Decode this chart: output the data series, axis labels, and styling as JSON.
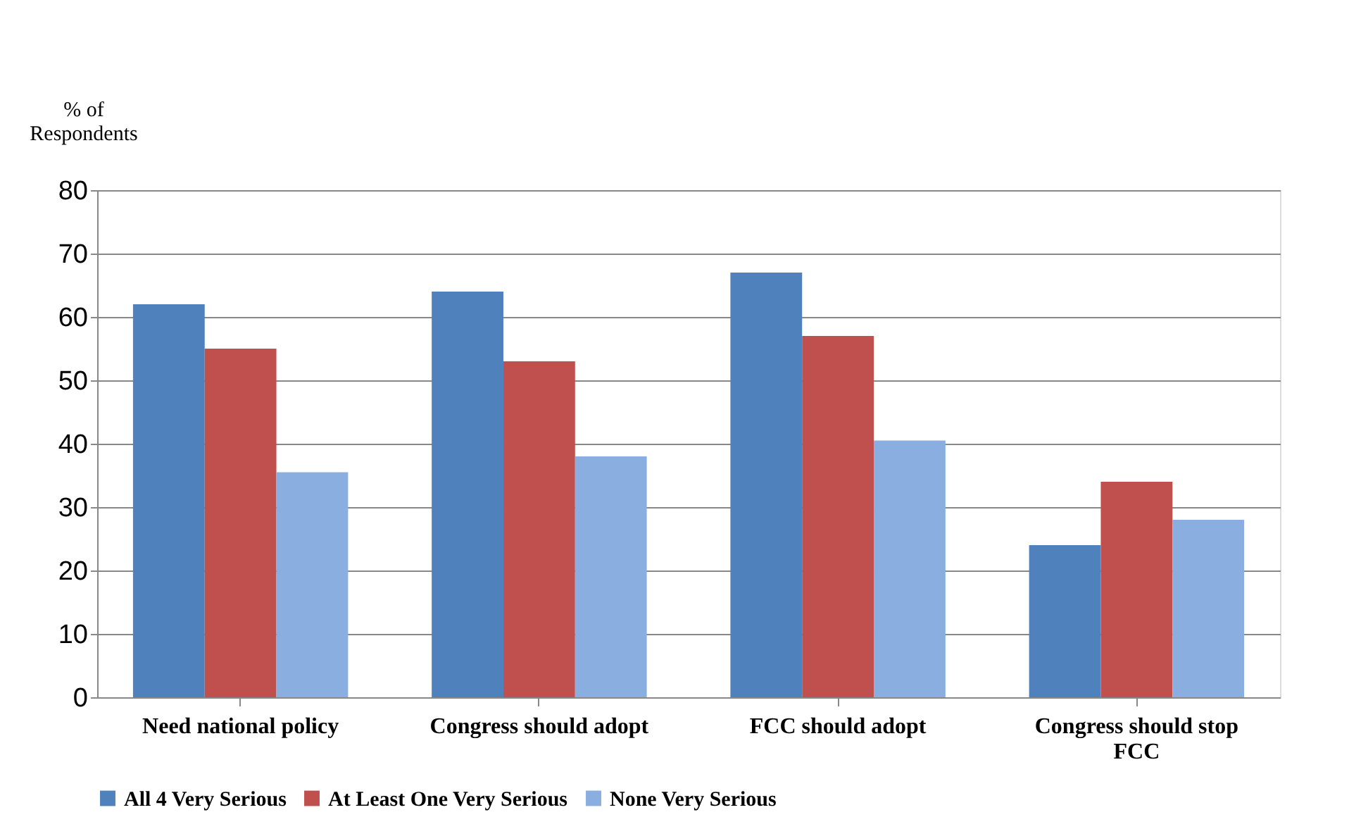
{
  "chart_data": {
    "type": "bar",
    "ylabel": "% of\nRespondents",
    "categories": [
      "Need national policy",
      "Congress should adopt",
      "FCC should adopt",
      "Congress should stop FCC"
    ],
    "series": [
      {
        "name": "All 4 Very Serious",
        "color": "#4f81bd",
        "values": [
          62,
          64,
          67,
          24
        ]
      },
      {
        "name": "At Least One Very Serious",
        "color": "#c0504d",
        "values": [
          55,
          53,
          57,
          34
        ]
      },
      {
        "name": "None Very Serious",
        "color": "#8aaee0",
        "values": [
          35.5,
          38,
          40.5,
          28
        ]
      }
    ],
    "ylim": [
      0,
      80
    ],
    "yticks": [
      0,
      10,
      20,
      30,
      40,
      50,
      60,
      70,
      80
    ],
    "grid": "y",
    "legend": "bottom"
  }
}
